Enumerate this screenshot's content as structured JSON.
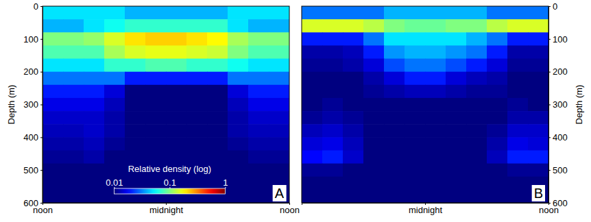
{
  "chart_data": [
    {
      "type": "heatmap",
      "panel": "A",
      "ylabel": "Depth (m)",
      "xlim": [
        0,
        24
      ],
      "xticks": [
        {
          "value": 0,
          "label": "noon"
        },
        {
          "value": 12,
          "label": "midnight"
        },
        {
          "value": 24,
          "label": "noon"
        }
      ],
      "ylim": [
        600,
        0
      ],
      "yticks": [
        0,
        100,
        200,
        300,
        400,
        500,
        600
      ],
      "x": [
        1,
        3,
        5,
        7,
        9,
        11,
        13,
        15,
        17,
        19,
        21,
        23
      ],
      "y": [
        20,
        60,
        100,
        140,
        180,
        220,
        260,
        300,
        340,
        380,
        420,
        460,
        500,
        540,
        580
      ],
      "values": [
        [
          0.05,
          0.05,
          0.05,
          0.05,
          0.04,
          0.04,
          0.04,
          0.04,
          0.04,
          0.05,
          0.05,
          0.05
        ],
        [
          0.04,
          0.04,
          0.05,
          0.06,
          0.07,
          0.07,
          0.07,
          0.07,
          0.07,
          0.05,
          0.04,
          0.04
        ],
        [
          0.1,
          0.1,
          0.11,
          0.15,
          0.2,
          0.22,
          0.22,
          0.2,
          0.18,
          0.12,
          0.1,
          0.1
        ],
        [
          0.08,
          0.08,
          0.08,
          0.12,
          0.15,
          0.16,
          0.16,
          0.15,
          0.14,
          0.1,
          0.08,
          0.08
        ],
        [
          0.05,
          0.05,
          0.05,
          0.07,
          0.07,
          0.08,
          0.08,
          0.07,
          0.07,
          0.06,
          0.05,
          0.05
        ],
        [
          0.03,
          0.03,
          0.03,
          0.03,
          0.02,
          0.02,
          0.02,
          0.02,
          0.02,
          0.03,
          0.03,
          0.03
        ],
        [
          0.02,
          0.02,
          0.02,
          0.015,
          0.01,
          0.01,
          0.01,
          0.01,
          0.01,
          0.015,
          0.02,
          0.02
        ],
        [
          0.016,
          0.016,
          0.016,
          0.013,
          0.01,
          0.01,
          0.01,
          0.01,
          0.01,
          0.013,
          0.016,
          0.016
        ],
        [
          0.014,
          0.014,
          0.014,
          0.012,
          0.01,
          0.01,
          0.01,
          0.01,
          0.01,
          0.012,
          0.014,
          0.014
        ],
        [
          0.013,
          0.013,
          0.014,
          0.012,
          0.01,
          0.01,
          0.01,
          0.01,
          0.01,
          0.012,
          0.013,
          0.013
        ],
        [
          0.012,
          0.012,
          0.013,
          0.011,
          0.01,
          0.01,
          0.01,
          0.01,
          0.01,
          0.011,
          0.012,
          0.012
        ],
        [
          0.011,
          0.011,
          0.012,
          0.01,
          0.01,
          0.01,
          0.01,
          0.01,
          0.01,
          0.01,
          0.011,
          0.011
        ],
        [
          0.01,
          0.01,
          0.01,
          0.01,
          0.01,
          0.01,
          0.01,
          0.01,
          0.01,
          0.01,
          0.01,
          0.01
        ],
        [
          0.01,
          0.01,
          0.01,
          0.01,
          0.01,
          0.01,
          0.01,
          0.01,
          0.01,
          0.01,
          0.01,
          0.01
        ],
        [
          0.01,
          0.01,
          0.01,
          0.01,
          0.01,
          0.01,
          0.01,
          0.01,
          0.01,
          0.01,
          0.01,
          0.01
        ]
      ],
      "colorbar": {
        "label": "Relative density (log)",
        "log": true,
        "range": [
          0.01,
          1
        ],
        "ticks": [
          0.01,
          0.1,
          1
        ]
      }
    },
    {
      "type": "heatmap",
      "panel": "B",
      "ylabel": "Depth (m)",
      "xlim": [
        0,
        24
      ],
      "xticks": [
        {
          "value": 12,
          "label": "midnight"
        },
        {
          "value": 24,
          "label": "noon"
        }
      ],
      "ylim": [
        600,
        0
      ],
      "yticks": [
        0,
        100,
        200,
        300,
        400,
        500,
        600
      ],
      "x": [
        1,
        3,
        5,
        7,
        9,
        11,
        13,
        15,
        17,
        19,
        21,
        23
      ],
      "y": [
        20,
        60,
        100,
        140,
        180,
        220,
        260,
        300,
        340,
        380,
        420,
        460,
        500,
        540,
        580
      ],
      "values": [
        [
          0.03,
          0.03,
          0.03,
          0.03,
          0.04,
          0.04,
          0.04,
          0.04,
          0.04,
          0.03,
          0.03,
          0.03
        ],
        [
          0.15,
          0.15,
          0.15,
          0.13,
          0.1,
          0.09,
          0.09,
          0.1,
          0.1,
          0.13,
          0.15,
          0.15
        ],
        [
          0.02,
          0.02,
          0.02,
          0.03,
          0.05,
          0.05,
          0.05,
          0.05,
          0.04,
          0.03,
          0.02,
          0.02
        ],
        [
          0.012,
          0.012,
          0.013,
          0.02,
          0.035,
          0.04,
          0.04,
          0.035,
          0.03,
          0.02,
          0.012,
          0.012
        ],
        [
          0.011,
          0.011,
          0.012,
          0.015,
          0.025,
          0.03,
          0.03,
          0.025,
          0.02,
          0.015,
          0.011,
          0.011
        ],
        [
          0.01,
          0.01,
          0.01,
          0.012,
          0.015,
          0.02,
          0.02,
          0.015,
          0.013,
          0.012,
          0.01,
          0.01
        ],
        [
          0.01,
          0.01,
          0.01,
          0.011,
          0.012,
          0.013,
          0.013,
          0.012,
          0.011,
          0.011,
          0.01,
          0.01
        ],
        [
          0.01,
          0.011,
          0.01,
          0.01,
          0.01,
          0.01,
          0.01,
          0.01,
          0.01,
          0.01,
          0.011,
          0.01
        ],
        [
          0.011,
          0.012,
          0.011,
          0.01,
          0.01,
          0.01,
          0.01,
          0.01,
          0.01,
          0.01,
          0.012,
          0.012
        ],
        [
          0.013,
          0.014,
          0.012,
          0.01,
          0.01,
          0.01,
          0.01,
          0.01,
          0.01,
          0.011,
          0.014,
          0.014
        ],
        [
          0.015,
          0.016,
          0.013,
          0.01,
          0.01,
          0.01,
          0.01,
          0.01,
          0.01,
          0.012,
          0.016,
          0.015
        ],
        [
          0.018,
          0.02,
          0.014,
          0.01,
          0.01,
          0.01,
          0.01,
          0.01,
          0.01,
          0.013,
          0.02,
          0.02
        ],
        [
          0.011,
          0.011,
          0.01,
          0.01,
          0.01,
          0.01,
          0.01,
          0.01,
          0.01,
          0.01,
          0.011,
          0.011
        ],
        [
          0.01,
          0.01,
          0.01,
          0.01,
          0.01,
          0.01,
          0.01,
          0.01,
          0.01,
          0.01,
          0.01,
          0.01
        ],
        [
          0.01,
          0.01,
          0.01,
          0.01,
          0.01,
          0.01,
          0.01,
          0.01,
          0.01,
          0.01,
          0.01,
          0.01
        ]
      ]
    }
  ]
}
